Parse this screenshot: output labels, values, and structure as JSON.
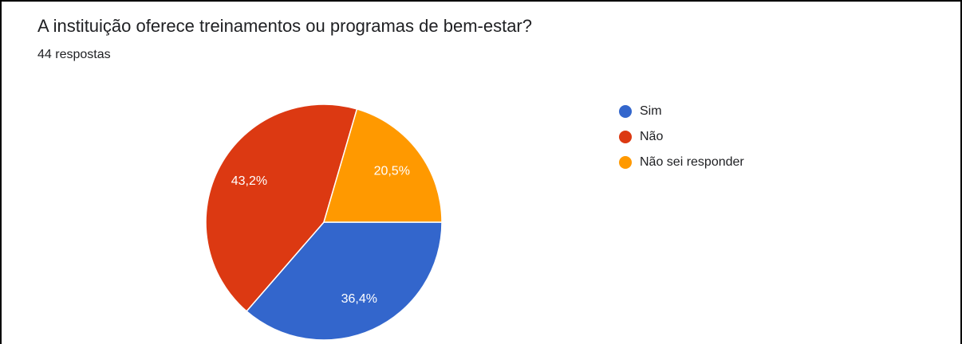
{
  "chart_data": {
    "type": "pie",
    "title": "A instituição oferece treinamentos ou programas de bem-estar?",
    "subtitle": "44 respostas",
    "categories": [
      "Sim",
      "Não",
      "Não sei responder"
    ],
    "values": [
      36.4,
      43.2,
      20.5
    ],
    "value_labels": [
      "36,4%",
      "43,2%",
      "20,5%"
    ],
    "colors": [
      "#3366cc",
      "#dc3912",
      "#ff9900"
    ],
    "legend": "right"
  }
}
